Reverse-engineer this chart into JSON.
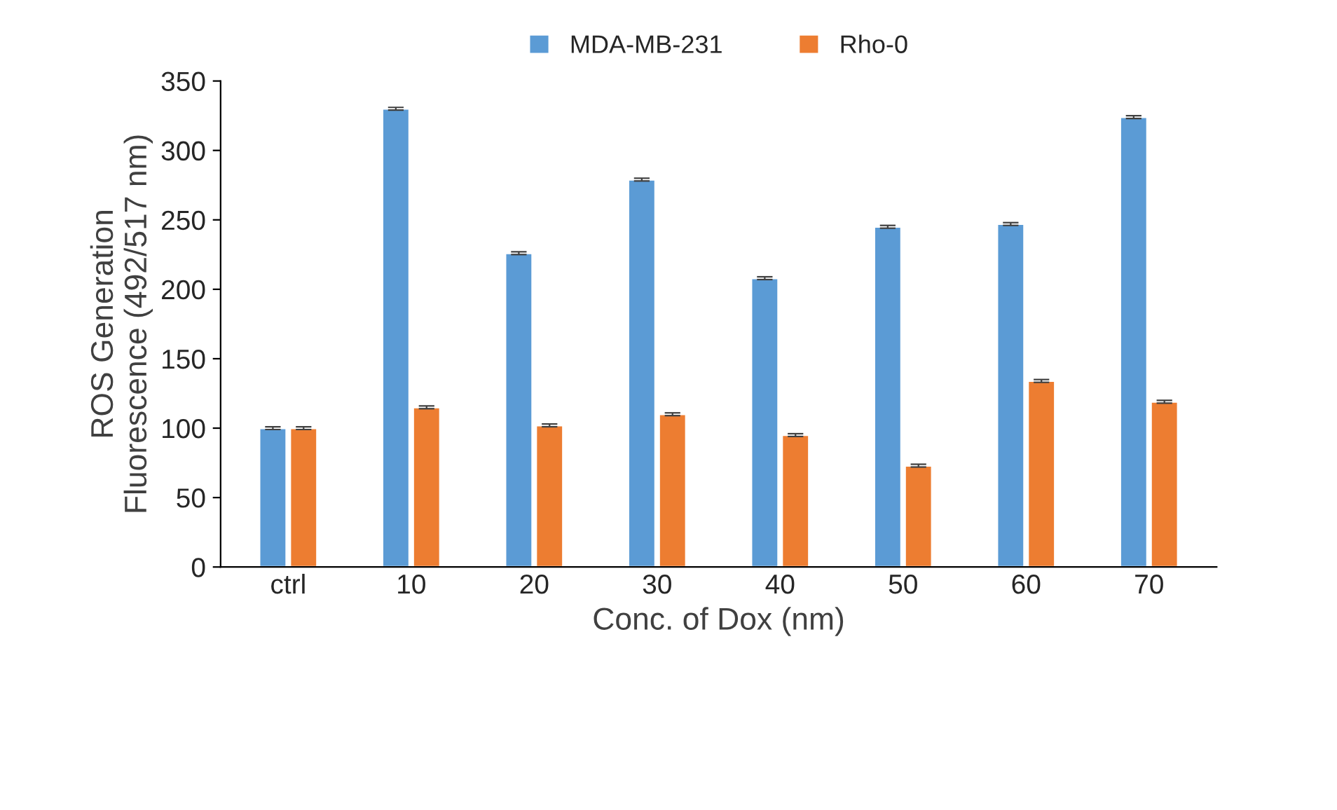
{
  "chart_data": {
    "type": "bar",
    "xlabel": "Conc. of Dox (nm)",
    "ylabel": "ROS Generation\nFluorescence (492/517 nm)",
    "categories": [
      "ctrl",
      "10",
      "20",
      "30",
      "40",
      "50",
      "60",
      "70"
    ],
    "series": [
      {
        "name": "MDA-MB-231",
        "color": "#5b9bd5",
        "values": [
          100,
          330,
          226,
          279,
          208,
          245,
          247,
          324
        ],
        "errors": [
          1,
          1,
          1,
          1,
          1,
          1,
          1,
          1
        ]
      },
      {
        "name": "Rho-0",
        "color": "#ed7d31",
        "values": [
          100,
          115,
          102,
          110,
          95,
          73,
          134,
          119
        ],
        "errors": [
          1,
          1,
          1,
          1,
          1,
          1,
          1,
          1
        ]
      }
    ],
    "ylim": [
      0,
      350
    ],
    "yticks": [
      0,
      50,
      100,
      150,
      200,
      250,
      300,
      350
    ],
    "grid": false,
    "legend": "top"
  }
}
